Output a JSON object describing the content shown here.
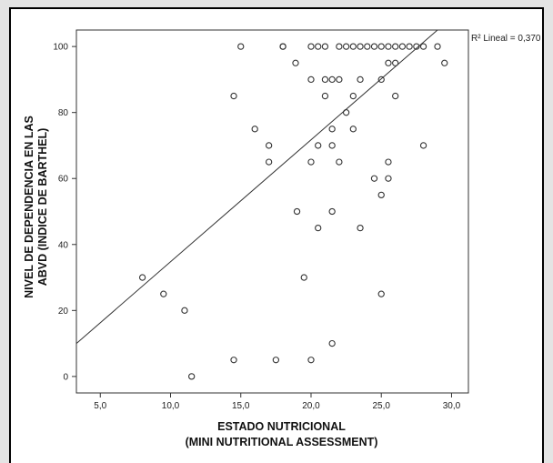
{
  "chart_data": {
    "type": "scatter",
    "title": "",
    "xlabel_line1": "ESTADO NUTRICIONAL",
    "xlabel_line2": "(MINI NUTRITIONAL ASSESSMENT)",
    "ylabel_line1": "NIVEL DE DEPENDENCIA EN LAS",
    "ylabel_line2": "ABVD (INDICE DE BARTHEL)",
    "xlim": [
      3.3,
      31.2
    ],
    "ylim": [
      -5,
      105
    ],
    "xticks": [
      5,
      10,
      15,
      20,
      25,
      30
    ],
    "xtick_labels": [
      "5,0",
      "10,0",
      "15,0",
      "20,0",
      "25,0",
      "30,0"
    ],
    "yticks": [
      0,
      20,
      40,
      60,
      80,
      100
    ],
    "ytick_labels": [
      "0",
      "20",
      "40",
      "60",
      "80",
      "100"
    ],
    "fit_line": {
      "label": "R² Lineal = 0,370",
      "x0": 3.3,
      "y0": 10,
      "x1": 29.0,
      "y1": 105
    },
    "grid": false,
    "points": [
      [
        8,
        30
      ],
      [
        9.5,
        25
      ],
      [
        11,
        20
      ],
      [
        11.5,
        0
      ],
      [
        14.5,
        85
      ],
      [
        14.5,
        5
      ],
      [
        15,
        100
      ],
      [
        16,
        75
      ],
      [
        17,
        70
      ],
      [
        17,
        65
      ],
      [
        17.5,
        5
      ],
      [
        18,
        100
      ],
      [
        18,
        100
      ],
      [
        18.9,
        95
      ],
      [
        19,
        50
      ],
      [
        19.5,
        30
      ],
      [
        20,
        100
      ],
      [
        20,
        90
      ],
      [
        20,
        65
      ],
      [
        20,
        5
      ],
      [
        20.5,
        100
      ],
      [
        20.5,
        70
      ],
      [
        20.5,
        45
      ],
      [
        21,
        100
      ],
      [
        21,
        90
      ],
      [
        21,
        85
      ],
      [
        21.5,
        90
      ],
      [
        21.5,
        75
      ],
      [
        21.5,
        70
      ],
      [
        21.5,
        50
      ],
      [
        21.5,
        10
      ],
      [
        22,
        100
      ],
      [
        22,
        90
      ],
      [
        22,
        65
      ],
      [
        22.5,
        100
      ],
      [
        22.5,
        80
      ],
      [
        23,
        100
      ],
      [
        23,
        85
      ],
      [
        23,
        75
      ],
      [
        23.5,
        100
      ],
      [
        23.5,
        90
      ],
      [
        23.5,
        45
      ],
      [
        24,
        100
      ],
      [
        24.5,
        100
      ],
      [
        24.5,
        60
      ],
      [
        25,
        100
      ],
      [
        25,
        90
      ],
      [
        25,
        55
      ],
      [
        25,
        25
      ],
      [
        25.5,
        100
      ],
      [
        25.5,
        95
      ],
      [
        25.5,
        65
      ],
      [
        25.5,
        60
      ],
      [
        26,
        100
      ],
      [
        26,
        95
      ],
      [
        26,
        85
      ],
      [
        26.5,
        100
      ],
      [
        27,
        100
      ],
      [
        27.5,
        100
      ],
      [
        28,
        100
      ],
      [
        28,
        70
      ],
      [
        29,
        100
      ],
      [
        29.5,
        95
      ]
    ]
  }
}
